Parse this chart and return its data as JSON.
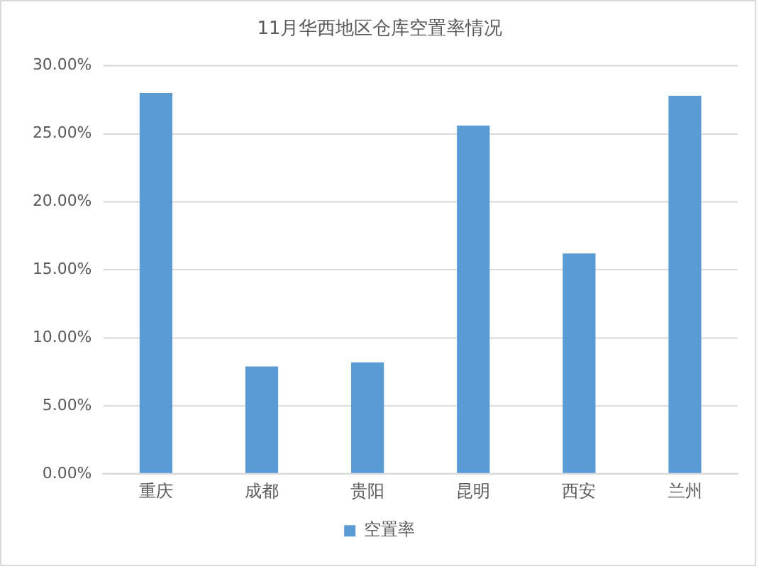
{
  "chart_data": {
    "type": "bar",
    "title": "11月华西地区仓库空置率情况",
    "categories": [
      "重庆",
      "成都",
      "贵阳",
      "昆明",
      "西安",
      "兰州"
    ],
    "series": [
      {
        "name": "空置率",
        "color": "#5b9bd5",
        "values": [
          28.0,
          7.9,
          8.2,
          25.6,
          16.2,
          27.8
        ]
      }
    ],
    "ylim": [
      0,
      30
    ],
    "yticks": [
      {
        "value": 0,
        "label": "0.00%"
      },
      {
        "value": 5,
        "label": "5.00%"
      },
      {
        "value": 10,
        "label": "10.00%"
      },
      {
        "value": 15,
        "label": "15.00%"
      },
      {
        "value": 20,
        "label": "20.00%"
      },
      {
        "value": 25,
        "label": "25.00%"
      },
      {
        "value": 30,
        "label": "30.00%"
      }
    ],
    "grid": "y",
    "legend": "bottom"
  }
}
